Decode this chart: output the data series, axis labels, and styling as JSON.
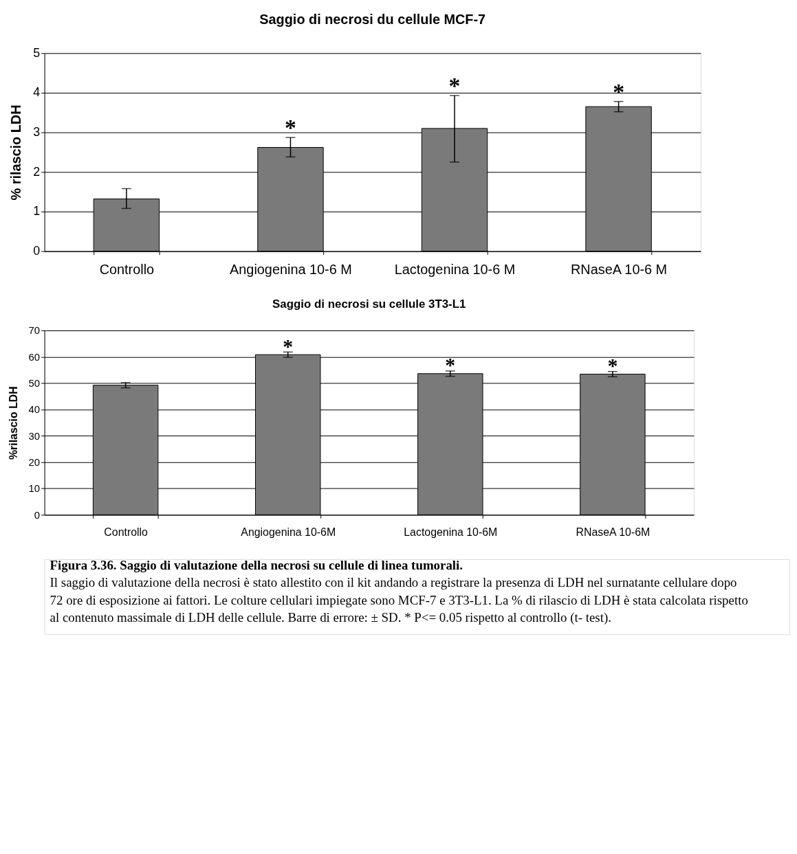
{
  "chart_data": [
    {
      "type": "bar",
      "title": "Saggio di necrosi du cellule MCF-7",
      "ylabel": "% rilascio LDH",
      "categories": [
        "Controllo",
        "Angiogenina 10-6 M",
        "Lactogenina 10-6 M",
        "RNaseA 10-6 M"
      ],
      "values": [
        1.32,
        2.62,
        3.1,
        3.65
      ],
      "errors": [
        [
          1.08,
          1.58
        ],
        [
          2.38,
          2.87
        ],
        [
          2.25,
          3.93
        ],
        [
          3.52,
          3.78
        ]
      ],
      "color": "#7a7a7a",
      "ylim": [
        0,
        5
      ],
      "yticks": [
        0,
        1,
        2,
        3,
        4,
        5
      ],
      "grid": "y",
      "annotations": [
        {
          "text": "*",
          "x": "Angiogenina 10-6 M",
          "y": 2.95
        },
        {
          "text": "*",
          "x": "Lactogenina 10-6 M",
          "y": 4.0
        },
        {
          "text": "*",
          "x": "RNaseA 10-6 M",
          "y": 3.85
        }
      ]
    },
    {
      "type": "bar",
      "title": "Saggio di necrosi su cellule 3T3-L1",
      "ylabel": "%rilascio LDH",
      "categories": [
        "Controllo",
        "Angiogenina 10-6M",
        "Lactogenina 10-6M",
        "RNaseA 10-6M"
      ],
      "values": [
        49.2,
        60.8,
        53.6,
        53.4
      ],
      "errors": [
        [
          48.2,
          50.2
        ],
        [
          59.8,
          61.8
        ],
        [
          52.6,
          54.6
        ],
        [
          52.4,
          54.4
        ]
      ],
      "color": "#7a7a7a",
      "ylim": [
        0,
        70
      ],
      "yticks": [
        0,
        10,
        20,
        30,
        40,
        50,
        60,
        70
      ],
      "grid": "y",
      "annotations": [
        {
          "text": "*",
          "x": "Angiogenina 10-6M",
          "y": 62.5
        },
        {
          "text": "*",
          "x": "Lactogenina 10-6M",
          "y": 55.3
        },
        {
          "text": "*",
          "x": "RNaseA 10-6M",
          "y": 55.1
        },
        "Figura 3.36. Saggio di valutazione della necrosi su cellule di linea tumorali.",
        "Il saggio di valutazione della necrosi è stato allestito con il kit andando a registrare la presenza di LDH nel surnatante cellulare dopo 72 ore di esposizione ai fattori. Le colture cellulari impiegate sono MCF-7 e 3T3-L1. La % di rilascio di LDH è stata calcolata rispetto al contenuto massimale di LDH delle cellule. Barre di errore: ± SD. * P<= 0.05 rispetto al controllo (t- test)."
      ]
    }
  ]
}
